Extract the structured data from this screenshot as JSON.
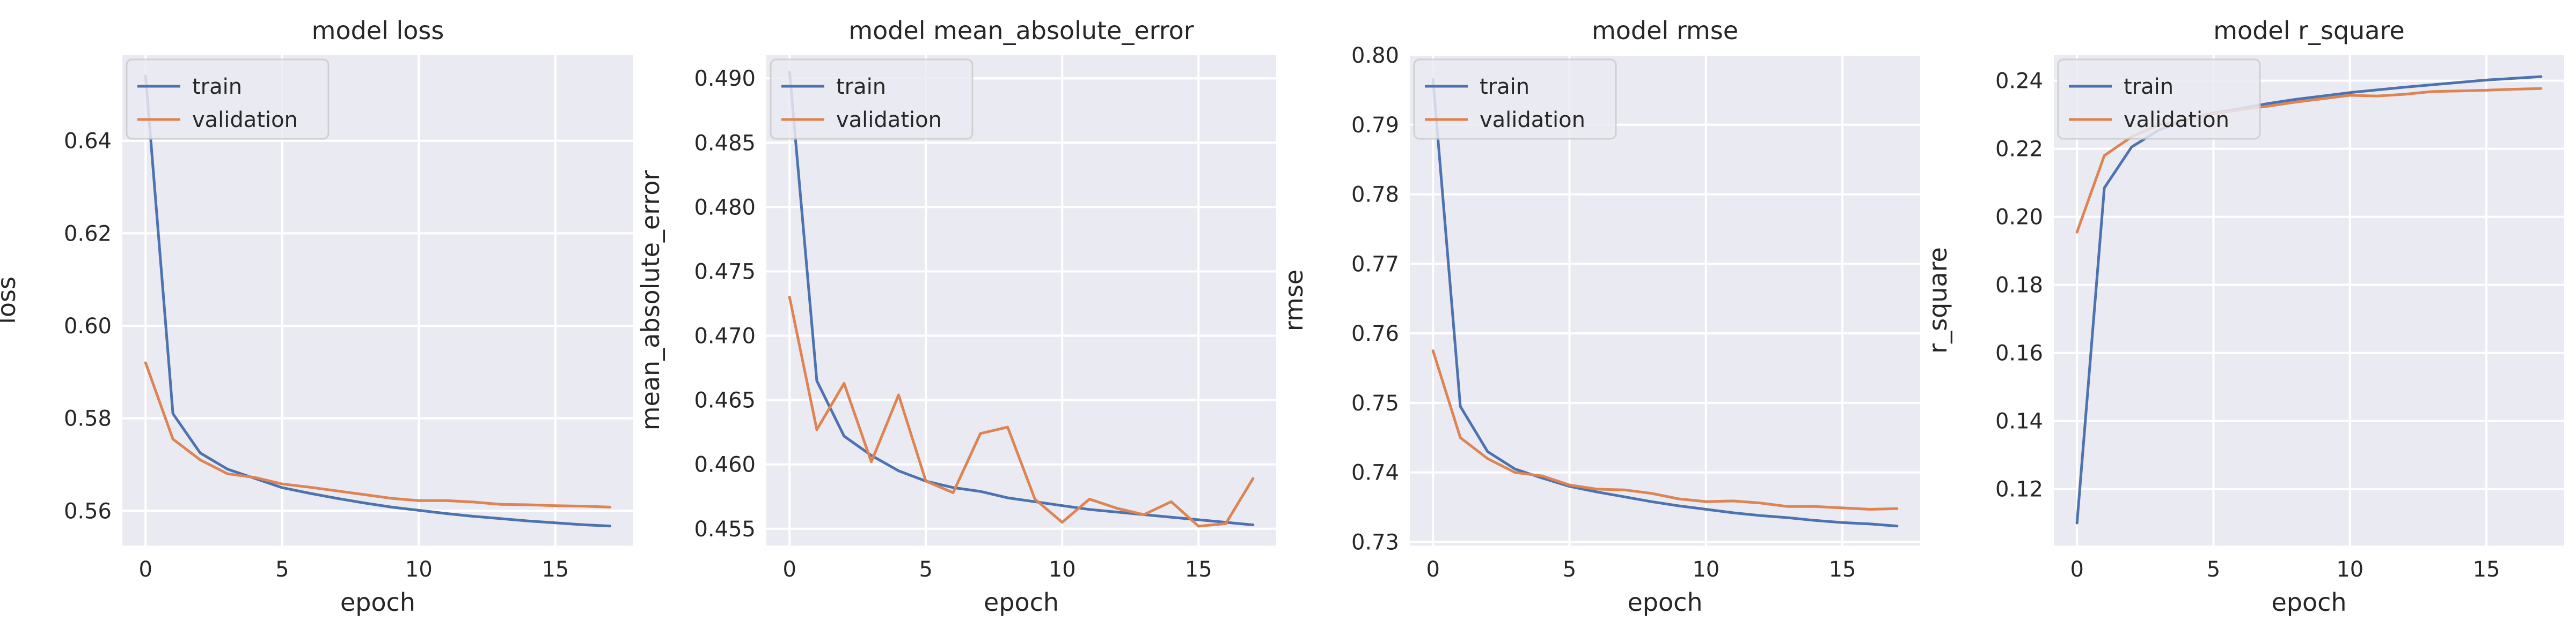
{
  "colors": {
    "train": "#4c72b0",
    "validation": "#dd8452",
    "background": "#eaeaf2",
    "grid": "#ffffff"
  },
  "chart_data": [
    {
      "type": "line",
      "title": "model loss",
      "xlabel": "epoch",
      "ylabel": "loss",
      "xlim": [
        -0.85,
        17.85
      ],
      "ylim": [
        0.5525,
        0.6585
      ],
      "xticks": [
        0,
        5,
        10,
        15
      ],
      "yticks": [
        0.56,
        0.58,
        0.6,
        0.62,
        0.64
      ],
      "ytick_labels": [
        "0.56",
        "0.58",
        "0.60",
        "0.62",
        "0.64"
      ],
      "grid": true,
      "legend": "upper-left",
      "x": [
        0,
        1,
        2,
        3,
        4,
        5,
        6,
        7,
        8,
        9,
        10,
        11,
        12,
        13,
        14,
        15,
        16,
        17
      ],
      "series": [
        {
          "name": "train",
          "values": [
            0.654,
            0.581,
            0.5725,
            0.569,
            0.567,
            0.565,
            0.5638,
            0.5627,
            0.5617,
            0.5608,
            0.5601,
            0.5594,
            0.5588,
            0.5583,
            0.5578,
            0.5574,
            0.557,
            0.5567
          ]
        },
        {
          "name": "validation",
          "values": [
            0.592,
            0.5755,
            0.571,
            0.568,
            0.5672,
            0.5658,
            0.5651,
            0.5643,
            0.5635,
            0.5627,
            0.5622,
            0.5622,
            0.5619,
            0.5614,
            0.5613,
            0.5611,
            0.561,
            0.5608
          ]
        }
      ]
    },
    {
      "type": "line",
      "title": "model mean_absolute_error",
      "xlabel": "epoch",
      "ylabel": "mean_absolute_error",
      "xlim": [
        -0.85,
        17.85
      ],
      "ylim": [
        0.4537,
        0.4918
      ],
      "xticks": [
        0,
        5,
        10,
        15
      ],
      "yticks": [
        0.455,
        0.46,
        0.465,
        0.47,
        0.475,
        0.48,
        0.485,
        0.49
      ],
      "ytick_labels": [
        "0.455",
        "0.460",
        "0.465",
        "0.470",
        "0.475",
        "0.480",
        "0.485",
        "0.490"
      ],
      "grid": true,
      "legend": "upper-left",
      "x": [
        0,
        1,
        2,
        3,
        4,
        5,
        6,
        7,
        8,
        9,
        10,
        11,
        12,
        13,
        14,
        15,
        16,
        17
      ],
      "series": [
        {
          "name": "train",
          "values": [
            0.4905,
            0.4665,
            0.4622,
            0.4607,
            0.4595,
            0.4587,
            0.4582,
            0.4579,
            0.4574,
            0.4571,
            0.4568,
            0.4565,
            0.4563,
            0.4561,
            0.4559,
            0.4557,
            0.4555,
            0.4553
          ]
        },
        {
          "name": "validation",
          "values": [
            0.473,
            0.4627,
            0.4663,
            0.4602,
            0.4654,
            0.4587,
            0.4578,
            0.4624,
            0.4629,
            0.4573,
            0.4555,
            0.4573,
            0.4566,
            0.4561,
            0.4571,
            0.4552,
            0.4554,
            0.4589
          ]
        }
      ]
    },
    {
      "type": "line",
      "title": "model rmse",
      "xlabel": "epoch",
      "ylabel": "rmse",
      "xlim": [
        -0.85,
        17.85
      ],
      "ylim": [
        0.7295,
        0.8
      ],
      "xticks": [
        0,
        5,
        10,
        15
      ],
      "yticks": [
        0.73,
        0.74,
        0.75,
        0.76,
        0.77,
        0.78,
        0.79,
        0.8
      ],
      "ytick_labels": [
        "0.73",
        "0.74",
        "0.75",
        "0.76",
        "0.77",
        "0.78",
        "0.79",
        "0.80"
      ],
      "grid": true,
      "legend": "upper-left",
      "x": [
        0,
        1,
        2,
        3,
        4,
        5,
        6,
        7,
        8,
        9,
        10,
        11,
        12,
        13,
        14,
        15,
        16,
        17
      ],
      "series": [
        {
          "name": "train",
          "values": [
            0.7965,
            0.7495,
            0.743,
            0.7405,
            0.7392,
            0.738,
            0.7372,
            0.7365,
            0.7358,
            0.7352,
            0.7347,
            0.7342,
            0.7338,
            0.7335,
            0.7331,
            0.7328,
            0.7326,
            0.7323
          ]
        },
        {
          "name": "validation",
          "values": [
            0.7575,
            0.745,
            0.742,
            0.74,
            0.7395,
            0.7382,
            0.7376,
            0.7375,
            0.737,
            0.7362,
            0.7358,
            0.7359,
            0.7356,
            0.7351,
            0.7351,
            0.7349,
            0.7347,
            0.7348
          ]
        }
      ]
    },
    {
      "type": "line",
      "title": "model r_square",
      "xlabel": "epoch",
      "ylabel": "r_square",
      "xlim": [
        -0.85,
        17.85
      ],
      "ylim": [
        0.1034,
        0.2475
      ],
      "xticks": [
        0,
        5,
        10,
        15
      ],
      "yticks": [
        0.12,
        0.14,
        0.16,
        0.18,
        0.2,
        0.22,
        0.24
      ],
      "ytick_labels": [
        "0.12",
        "0.14",
        "0.16",
        "0.18",
        "0.20",
        "0.22",
        "0.24"
      ],
      "grid": true,
      "legend": "upper-left",
      "x": [
        0,
        1,
        2,
        3,
        4,
        5,
        6,
        7,
        8,
        9,
        10,
        11,
        12,
        13,
        14,
        15,
        16,
        17
      ],
      "series": [
        {
          "name": "train",
          "values": [
            0.11,
            0.2085,
            0.2205,
            0.2255,
            0.2285,
            0.2305,
            0.2318,
            0.2333,
            0.2345,
            0.2355,
            0.2365,
            0.2373,
            0.2381,
            0.2388,
            0.2395,
            0.2402,
            0.2407,
            0.2412
          ]
        },
        {
          "name": "validation",
          "values": [
            0.1955,
            0.218,
            0.2235,
            0.227,
            0.2285,
            0.2303,
            0.2315,
            0.2325,
            0.2337,
            0.2347,
            0.2357,
            0.2355,
            0.236,
            0.2368,
            0.237,
            0.2372,
            0.2375,
            0.2377
          ]
        }
      ]
    }
  ]
}
